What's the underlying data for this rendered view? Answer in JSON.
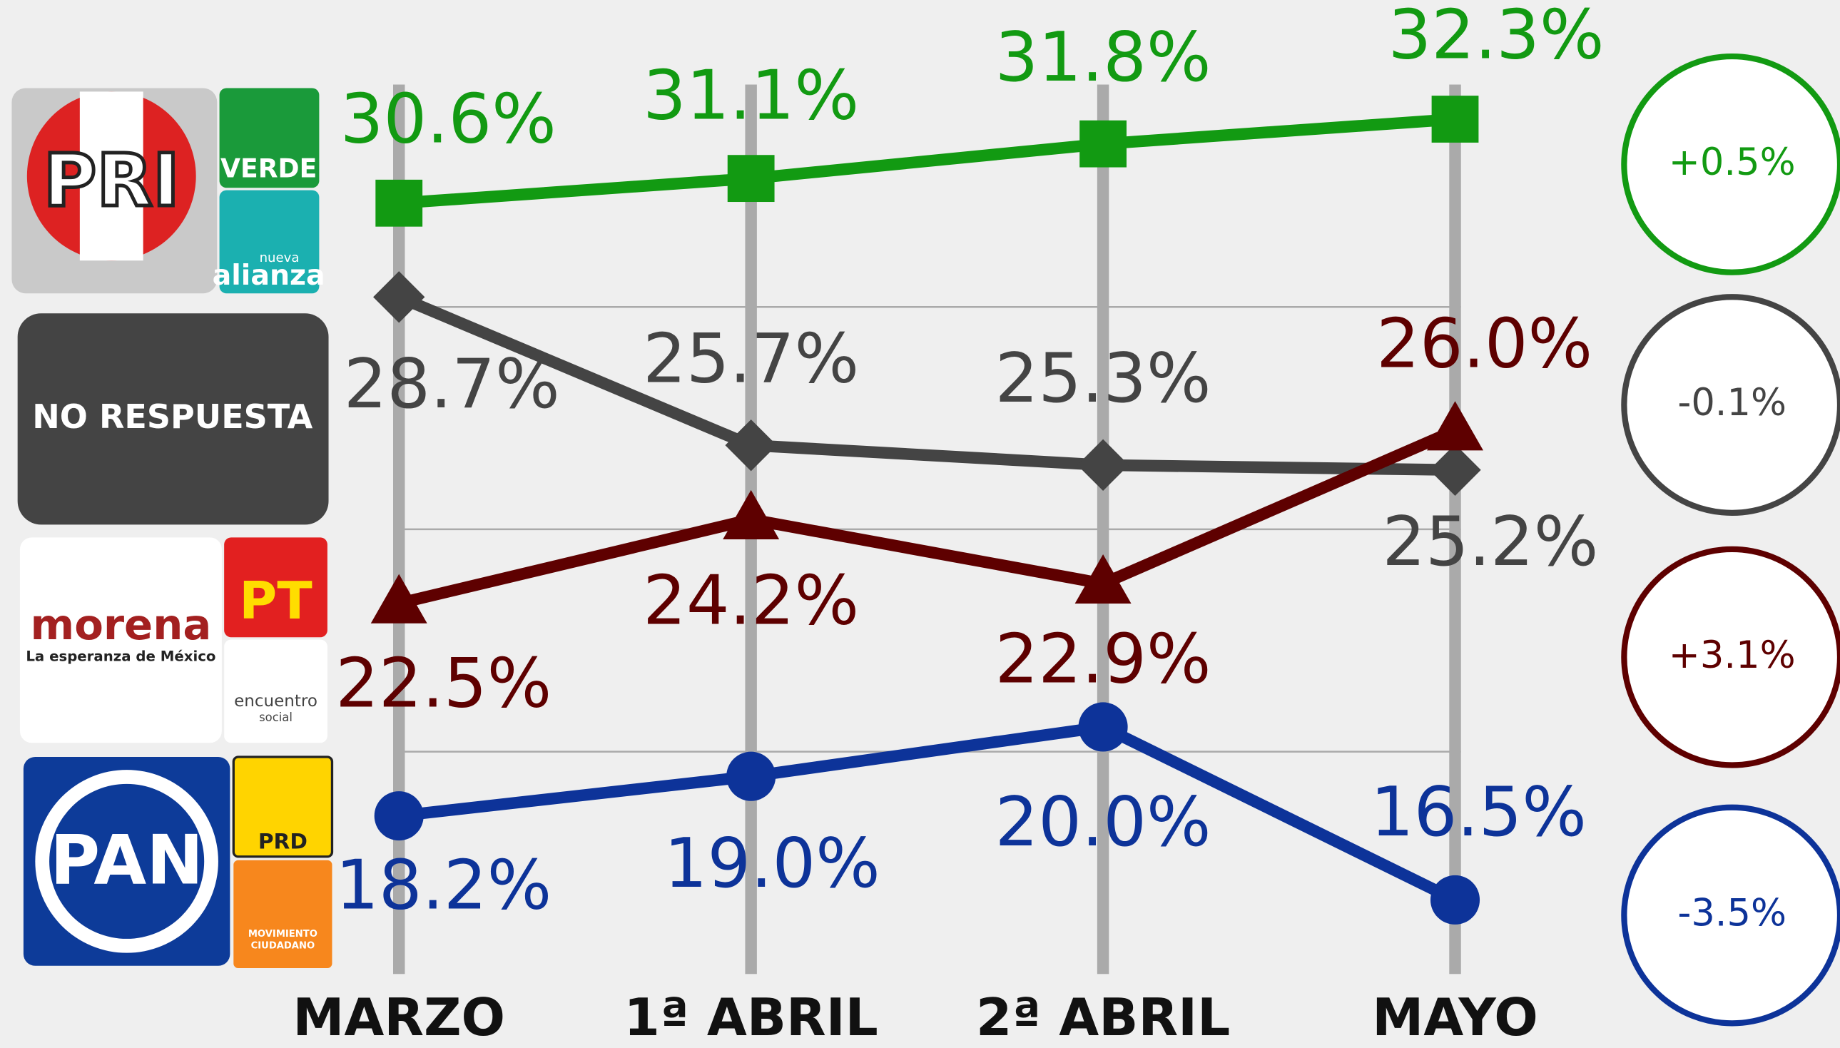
{
  "chart_data": {
    "type": "line",
    "categories": [
      "MARZO",
      "1ª ABRIL",
      "2ª ABRIL",
      "MAYO"
    ],
    "ylim": [
      15,
      33
    ],
    "yticks": [
      15,
      19.5,
      24,
      28.5,
      33
    ],
    "grid": true,
    "series": [
      {
        "name": "PRI",
        "logo_texts": [
          "VERDE",
          "nueva",
          "alianza"
        ],
        "color": "#129a12",
        "marker": "square",
        "values": [
          30.6,
          31.1,
          31.8,
          32.3
        ],
        "value_labels": [
          "30.6%",
          "31.1%",
          "31.8%",
          "32.3%"
        ],
        "change": "+0.5%"
      },
      {
        "name": "NO RESPUESTA",
        "logo_texts": [],
        "color": "#444444",
        "marker": "diamond",
        "values": [
          28.7,
          25.7,
          25.3,
          25.2
        ],
        "value_labels": [
          "28.7%",
          "25.7%",
          "25.3%",
          "25.2%"
        ],
        "change": "-0.1%"
      },
      {
        "name": "morena",
        "logo_texts": [
          "La esperanza de México",
          "PT",
          "encuentro",
          "social"
        ],
        "color": "#5e0000",
        "marker": "triangle",
        "values": [
          22.5,
          24.2,
          22.9,
          26.0
        ],
        "value_labels": [
          "22.5%",
          "24.2%",
          "22.9%",
          "26.0%"
        ],
        "change": "+3.1%"
      },
      {
        "name": "PAN",
        "logo_texts": [
          "PRD",
          "MOVIMIENTO",
          "CIUDADANO"
        ],
        "color": "#0d3399",
        "marker": "circle",
        "values": [
          18.2,
          19.0,
          20.0,
          16.5
        ],
        "value_labels": [
          "18.2%",
          "19.0%",
          "20.0%",
          "16.5%"
        ],
        "change": "-3.5%"
      }
    ]
  }
}
